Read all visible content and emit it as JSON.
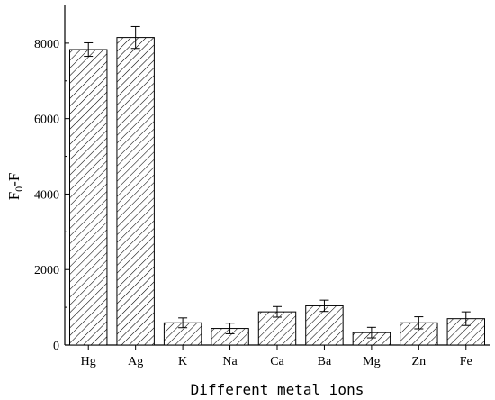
{
  "chart_data": {
    "type": "bar",
    "categories": [
      "Hg",
      "Ag",
      "K",
      "Na",
      "Ca",
      "Ba",
      "Mg",
      "Zn",
      "Fe"
    ],
    "values": [
      7830,
      8150,
      590,
      440,
      880,
      1040,
      330,
      590,
      700
    ],
    "errors": [
      180,
      290,
      130,
      140,
      140,
      150,
      140,
      160,
      180
    ],
    "xlabel": "Different metal ions",
    "ylabel": {
      "main": "F",
      "sub": "0",
      "suffix": "-F"
    },
    "ylim": [
      0,
      9000
    ],
    "yticks": [
      "0",
      "2000",
      "4000",
      "6000",
      "8000"
    ],
    "bar_fill": "hatched-diagonal",
    "colors": {
      "bar_stroke": "#000000",
      "hatch": "#000000",
      "background": "#ffffff"
    }
  }
}
